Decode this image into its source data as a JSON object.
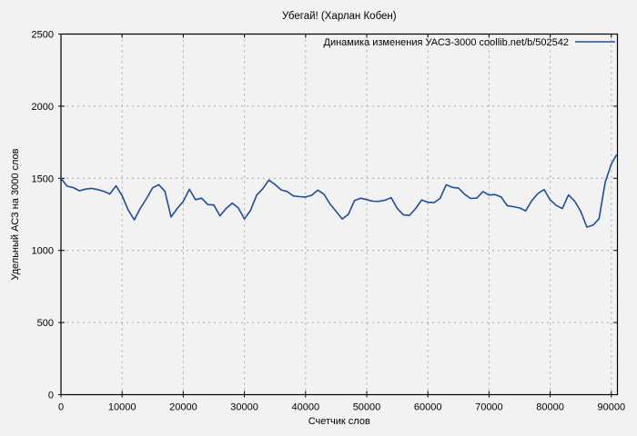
{
  "colors": {
    "background": "#f2f2f2",
    "series_line": "#1c4e9e",
    "grid": "#a6a6a6",
    "border": "#000000",
    "text": "#000000"
  },
  "chart_data": {
    "type": "line",
    "title": "Убегай! (Харлан Кобен)",
    "xlabel": "Счетчик слов",
    "ylabel": "Удельный АСЗ на 3000 слов",
    "xlim": [
      0,
      91000
    ],
    "ylim": [
      0,
      2500
    ],
    "x_ticks": [
      0,
      10000,
      20000,
      30000,
      40000,
      50000,
      60000,
      70000,
      80000,
      90000
    ],
    "y_ticks": [
      0,
      500,
      1000,
      1500,
      2000,
      2500
    ],
    "grid": true,
    "legend_position": "top-right-inside",
    "series": [
      {
        "name": "Динамика изменения УАСЗ-3000  coollib.net/b/502542",
        "color": "#1c4e9e",
        "x": [
          0,
          1000,
          2000,
          3000,
          4000,
          5000,
          6000,
          7000,
          8000,
          9000,
          10000,
          11000,
          12000,
          13000,
          14000,
          15000,
          16000,
          17000,
          18000,
          19000,
          20000,
          21000,
          22000,
          23000,
          24000,
          25000,
          26000,
          27000,
          28000,
          29000,
          30000,
          31000,
          32000,
          33000,
          34000,
          35000,
          36000,
          37000,
          38000,
          39000,
          40000,
          41000,
          42000,
          43000,
          44000,
          45000,
          46000,
          47000,
          48000,
          49000,
          50000,
          51000,
          52000,
          53000,
          54000,
          55000,
          56000,
          57000,
          58000,
          59000,
          60000,
          61000,
          62000,
          63000,
          64000,
          65000,
          66000,
          67000,
          68000,
          69000,
          70000,
          71000,
          72000,
          73000,
          74000,
          75000,
          76000,
          77000,
          78000,
          79000,
          80000,
          81000,
          82000,
          83000,
          84000,
          85000,
          86000,
          87000,
          88000,
          89000,
          90000,
          90800
        ],
        "values": [
          1500,
          1446,
          1436,
          1414,
          1425,
          1430,
          1422,
          1410,
          1392,
          1448,
          1380,
          1280,
          1212,
          1295,
          1360,
          1435,
          1456,
          1410,
          1232,
          1290,
          1340,
          1424,
          1352,
          1362,
          1318,
          1315,
          1240,
          1290,
          1328,
          1295,
          1218,
          1278,
          1383,
          1428,
          1488,
          1457,
          1420,
          1408,
          1378,
          1373,
          1370,
          1382,
          1418,
          1390,
          1322,
          1270,
          1218,
          1250,
          1345,
          1362,
          1352,
          1341,
          1340,
          1348,
          1366,
          1290,
          1246,
          1243,
          1290,
          1350,
          1334,
          1331,
          1360,
          1455,
          1437,
          1432,
          1390,
          1360,
          1363,
          1408,
          1384,
          1387,
          1370,
          1310,
          1303,
          1295,
          1274,
          1345,
          1395,
          1422,
          1350,
          1312,
          1290,
          1385,
          1342,
          1270,
          1162,
          1175,
          1220,
          1474,
          1599,
          1660
        ]
      }
    ]
  }
}
